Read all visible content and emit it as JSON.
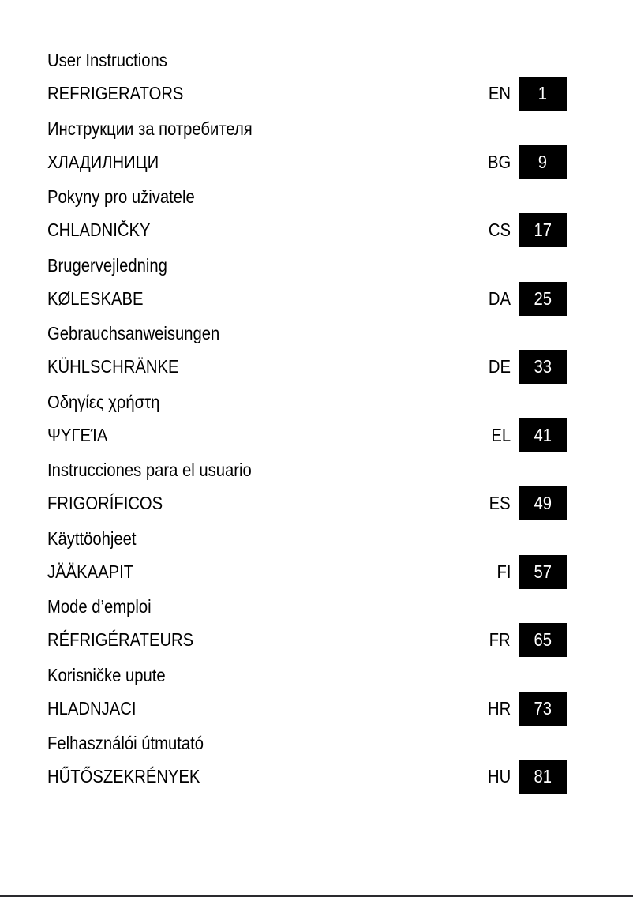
{
  "entries": [
    {
      "title": "User Instructions",
      "product": "REFRIGERATORS",
      "lang": "EN",
      "page": "1"
    },
    {
      "title": "Инструкции за потребителя",
      "product": "ХЛАДИЛНИЦИ",
      "lang": "BG",
      "page": "9"
    },
    {
      "title": "Pokyny pro uživatele",
      "product": "CHLADNIČKY",
      "lang": "CS",
      "page": "17"
    },
    {
      "title": "Brugervejledning",
      "product": "KØLESKABE",
      "lang": "DA",
      "page": "25"
    },
    {
      "title": "Gebrauchsanweisungen",
      "product": "KÜHLSCHRÄNKE",
      "lang": "DE",
      "page": "33"
    },
    {
      "title": "Οδηγίες χρήστη",
      "product": "ΨΥΓΕΊΑ",
      "lang": "EL",
      "page": "41"
    },
    {
      "title": "Instrucciones para el usuario",
      "product": "FRIGORÍFICOS",
      "lang": "ES",
      "page": "49"
    },
    {
      "title": "Käyttöohjeet",
      "product": "JÄÄKAAPIT",
      "lang": "FI",
      "page": "57"
    },
    {
      "title": "Mode d’emploi",
      "product": "RÉFRIGÉRATEURS",
      "lang": "FR",
      "page": "65"
    },
    {
      "title": "Korisničke upute",
      "product": "HLADNJACI",
      "lang": "HR",
      "page": "73"
    },
    {
      "title": "Felhasználói útmutató",
      "product": "HŰTŐSZEKRÉNYEK",
      "lang": "HU",
      "page": "81"
    }
  ]
}
